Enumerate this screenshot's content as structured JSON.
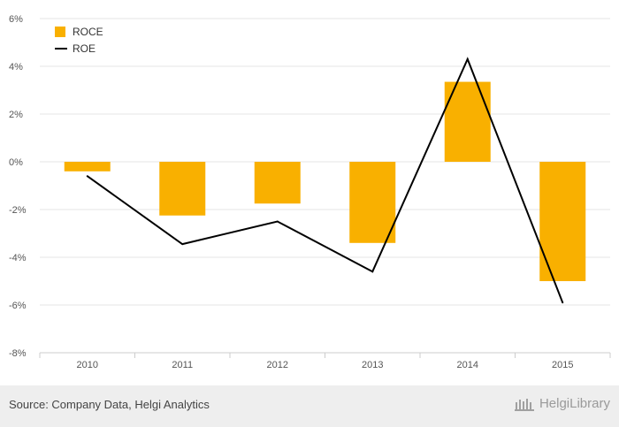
{
  "chart_data": {
    "type": "bar",
    "categories": [
      "2010",
      "2011",
      "2012",
      "2013",
      "2014",
      "2015"
    ],
    "series": [
      {
        "name": "ROCE",
        "type": "bar",
        "color": "#f9b000",
        "values": [
          -0.4,
          -2.25,
          -1.75,
          -3.4,
          3.35,
          -5.0
        ]
      },
      {
        "name": "ROE",
        "type": "line",
        "color": "#000000",
        "values": [
          -0.6,
          -3.45,
          -2.5,
          -4.6,
          4.3,
          -5.9
        ]
      }
    ],
    "ylim": [
      -8,
      6
    ],
    "yticks": [
      -8,
      -6,
      -4,
      -2,
      0,
      2,
      4,
      6
    ],
    "ytick_labels": [
      "-8%",
      "-6%",
      "-4%",
      "-2%",
      "0%",
      "2%",
      "4%",
      "6%"
    ],
    "grid": true,
    "legend_position": "top-left"
  },
  "footer": {
    "source": "Source: Company Data, Helgi Analytics",
    "brand": "HelgiLibrary"
  }
}
